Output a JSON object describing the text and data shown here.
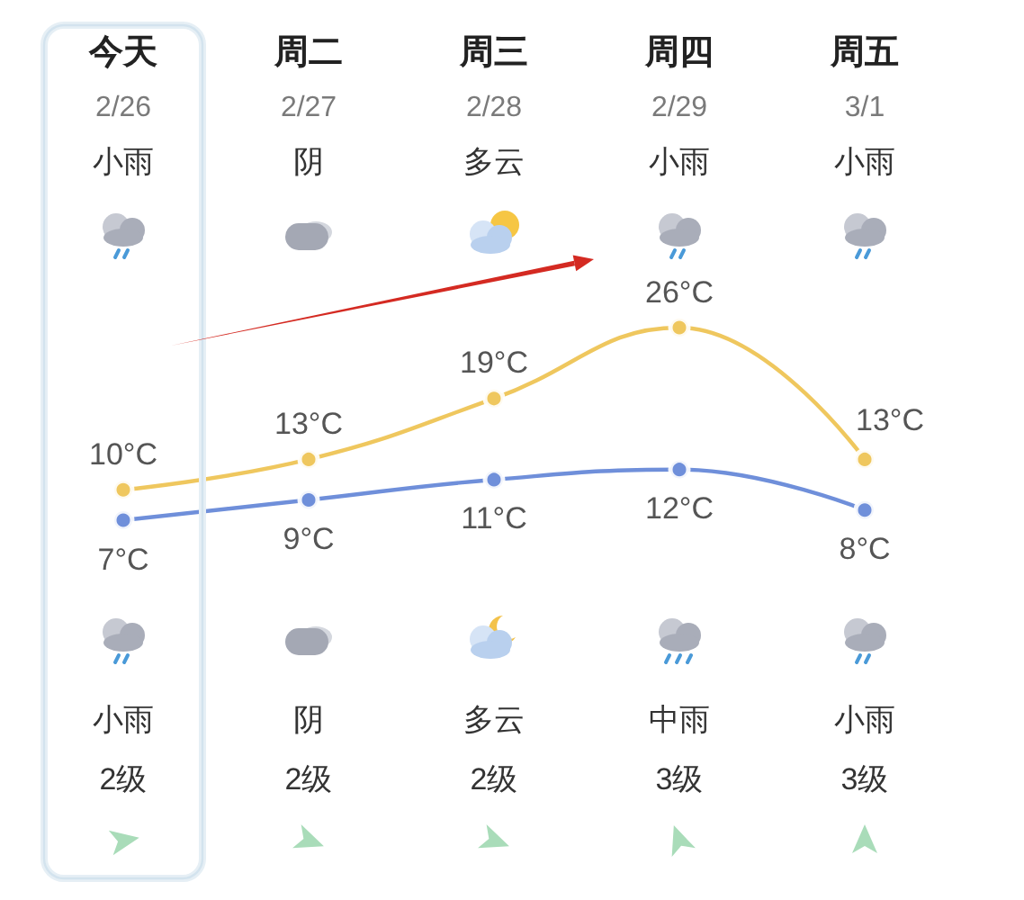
{
  "chart_data": {
    "type": "line",
    "categories": [
      "今天",
      "周二",
      "周三",
      "周四",
      "周五"
    ],
    "series": [
      {
        "color": "#efc75e",
        "values": [
          10,
          13,
          19,
          26,
          13
        ],
        "value_labels": [
          "10°C",
          "13°C",
          "19°C",
          "26°C",
          "13°C"
        ]
      },
      {
        "color": "#6f8fda",
        "values": [
          7,
          9,
          11,
          12,
          8
        ],
        "value_labels": [
          "7°C",
          "9°C",
          "11°C",
          "12°C",
          "8°C"
        ]
      }
    ],
    "marker": "circle",
    "tick_labels": "x",
    "annotations": [
      "2/26",
      "2/27",
      "2/28",
      "2/29",
      "3/1",
      "小雨",
      "阴",
      "多云",
      "小雨",
      "小雨",
      "小雨",
      "阴",
      "多云",
      "中雨",
      "小雨",
      "2级",
      "2级",
      "2级",
      "3级",
      "3级"
    ]
  }
}
